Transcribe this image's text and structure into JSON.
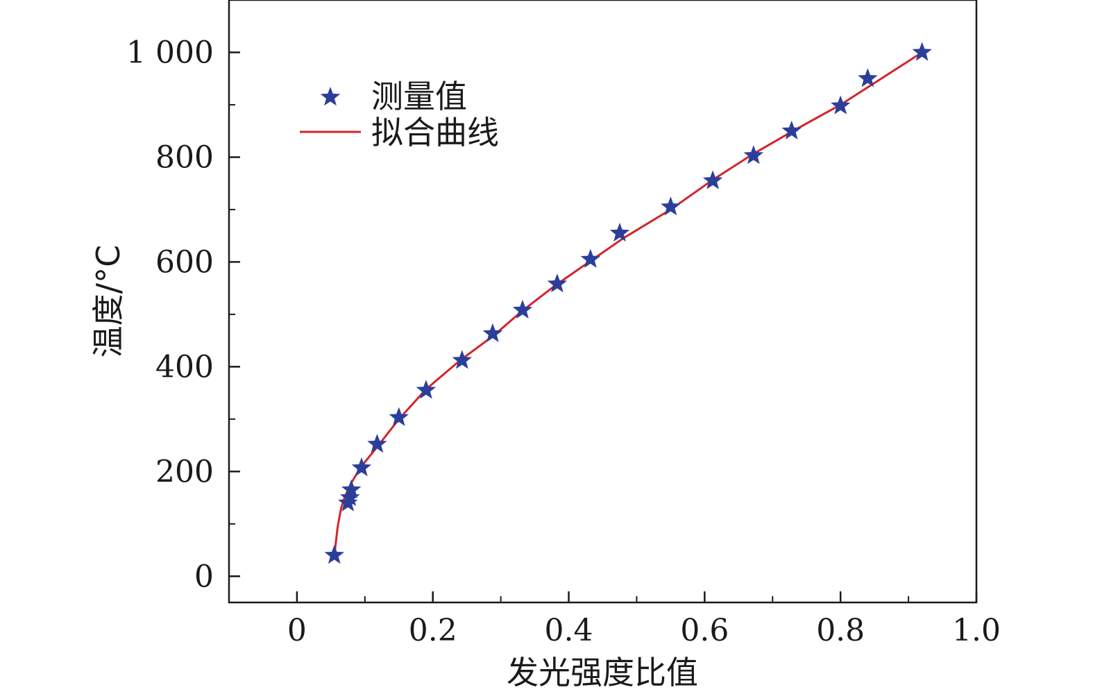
{
  "chart_data": {
    "type": "scatter",
    "xlabel": "发光强度比值",
    "ylabel": "温度/°C",
    "xlim": [
      -0.1,
      1.0
    ],
    "ylim": [
      -50,
      1100
    ],
    "xticks": [
      0,
      0.2,
      0.4,
      0.6,
      0.8,
      1.0
    ],
    "xtick_labels": [
      "0",
      "0.2",
      "0.4",
      "0.6",
      "0.8",
      "1.0"
    ],
    "yticks": [
      0,
      200,
      400,
      600,
      800,
      1000
    ],
    "ytick_labels": [
      "0",
      "200",
      "400",
      "600",
      "800",
      "1 000"
    ],
    "grid": false,
    "legend_position": "top-left",
    "series": [
      {
        "name": "测量值",
        "kind": "scatter",
        "marker": "star",
        "color": "#2b3f9a",
        "x": [
          0.055,
          0.075,
          0.078,
          0.08,
          0.095,
          0.118,
          0.15,
          0.19,
          0.243,
          0.288,
          0.332,
          0.383,
          0.432,
          0.475,
          0.55,
          0.612,
          0.672,
          0.728,
          0.8,
          0.84,
          0.92
        ],
        "y": [
          40,
          140,
          150,
          165,
          207,
          252,
          303,
          355,
          412,
          463,
          508,
          558,
          605,
          655,
          705,
          755,
          803,
          850,
          898,
          950,
          1000
        ]
      },
      {
        "name": "拟合曲线",
        "kind": "line",
        "color": "#d4232a",
        "x": [
          0.055,
          0.06,
          0.065,
          0.07,
          0.075,
          0.08,
          0.09,
          0.1,
          0.12,
          0.15,
          0.19,
          0.24,
          0.29,
          0.33,
          0.38,
          0.43,
          0.48,
          0.55,
          0.61,
          0.67,
          0.73,
          0.8,
          0.86,
          0.92
        ],
        "y": [
          40,
          95,
          130,
          150,
          165,
          178,
          200,
          218,
          250,
          300,
          357,
          412,
          460,
          505,
          555,
          600,
          645,
          700,
          755,
          805,
          850,
          900,
          950,
          1000
        ]
      }
    ]
  }
}
